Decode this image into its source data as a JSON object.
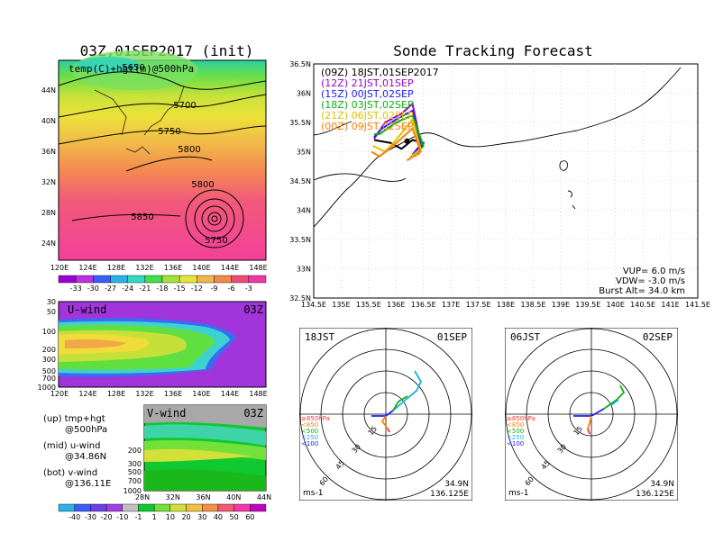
{
  "chart_data": [
    {
      "type": "heatmap",
      "title": "03Z,01SEP2017 (init)",
      "subtitle": "temp(C)+hgt(m)@500hPa",
      "x_ticks": [
        "120E",
        "124E",
        "128E",
        "132E",
        "136E",
        "140E",
        "144E",
        "148E"
      ],
      "y_ticks": [
        "44N",
        "40N",
        "36N",
        "32N",
        "28N",
        "24N"
      ],
      "contour_labels": [
        "5650",
        "5700",
        "5750",
        "5800",
        "5800",
        "5850",
        "5750"
      ],
      "colorbar": [
        "-33",
        "-30",
        "-27",
        "-24",
        "-21",
        "-18",
        "-15",
        "-12",
        "-9",
        "-6",
        "-3"
      ],
      "colors": [
        "#9b00d0",
        "#c030e0",
        "#3a5cff",
        "#2bb2e8",
        "#34d8c0",
        "#3fe04a",
        "#a6e03a",
        "#e6e63a",
        "#f0b848",
        "#f08a4a",
        "#f04a78",
        "#f238a8"
      ]
    },
    {
      "type": "heatmap",
      "title": "U-wind",
      "time_label": "03Z",
      "x_ticks": [
        "120E",
        "124E",
        "128E",
        "132E",
        "136E",
        "140E",
        "144E",
        "148E"
      ],
      "y_ticks": [
        "30",
        "50",
        "100",
        "200",
        "300",
        "500",
        "700",
        "1000"
      ]
    },
    {
      "type": "heatmap",
      "title": "V-wind",
      "time_label": "03Z",
      "x_ticks": [
        "28N",
        "32N",
        "36N",
        "40N",
        "44N"
      ],
      "y_ticks": [
        "200",
        "300",
        "500",
        "700",
        "1000"
      ],
      "colorbar": [
        "-40",
        "-30",
        "-20",
        "-10",
        "-1",
        "1",
        "10",
        "20",
        "30",
        "40",
        "50",
        "60"
      ]
    },
    {
      "type": "line",
      "title": "Sonde Tracking Forecast",
      "x_ticks": [
        "134.5E",
        "135E",
        "135.5E",
        "136E",
        "136.5E",
        "137E",
        "137.5E",
        "138E",
        "138.5E",
        "139E",
        "139.5E",
        "140E",
        "140.5E",
        "141E",
        "141.5E"
      ],
      "y_ticks": [
        "36.5N",
        "36N",
        "35.5N",
        "35N",
        "34.5N",
        "34N",
        "33.5N",
        "33N",
        "32.5N"
      ],
      "xlim": [
        134.5,
        141.5
      ],
      "ylim": [
        32.5,
        36.5
      ],
      "legend": [
        {
          "label": "(09Z)  18JST,01SEP2017",
          "color": "#000000"
        },
        {
          "label": "(12Z)  21JST,01SEP",
          "color": "#a000c8"
        },
        {
          "label": "(15Z)  00JST,02SEP",
          "color": "#1c1cff"
        },
        {
          "label": "(18Z)  03JST,02SEP",
          "color": "#10b010"
        },
        {
          "label": "(21Z)  06JST,02SEP",
          "color": "#e0c000"
        },
        {
          "label": "(00Z)  09JST,02SEP",
          "color": "#ff8000"
        }
      ],
      "series": [
        {
          "name": "(09Z)  18JST,01SEP2017",
          "x": [
            135.6,
            135.9,
            136.1,
            136.3,
            136.5,
            136.4
          ],
          "y": [
            35.2,
            35.15,
            35.05,
            35.2,
            35.15,
            34.95
          ]
        },
        {
          "name": "(12Z)  21JST,01SEP",
          "x": [
            135.6,
            135.8,
            136.1,
            136.3,
            136.45,
            136.35
          ],
          "y": [
            35.22,
            35.5,
            35.65,
            35.82,
            35.15,
            34.92
          ]
        },
        {
          "name": "(15Z)  00JST,02SEP",
          "x": [
            135.6,
            135.75,
            136.0,
            136.3,
            136.45,
            136.3
          ],
          "y": [
            35.25,
            35.4,
            35.55,
            35.7,
            35.12,
            34.95
          ]
        },
        {
          "name": "(18Z)  03JST,02SEP",
          "x": [
            135.6,
            135.7,
            136.0,
            136.3,
            136.5,
            136.35
          ],
          "y": [
            35.3,
            35.3,
            35.5,
            35.62,
            35.1,
            34.95
          ]
        },
        {
          "name": "(21Z)  06JST,02SEP",
          "x": [
            135.58,
            135.8,
            136.0,
            136.3,
            136.45,
            136.25
          ],
          "y": [
            35.1,
            35.0,
            35.2,
            35.55,
            35.05,
            34.9
          ]
        },
        {
          "name": "(00Z)  09JST,02SEP",
          "x": [
            135.55,
            135.7,
            135.95,
            136.3,
            136.45,
            136.2
          ],
          "y": [
            35.0,
            34.92,
            35.1,
            35.4,
            35.0,
            34.85
          ]
        }
      ],
      "info": {
        "vup": "VUP=  6.0 m/s",
        "vdw": "VDW= -3.0 m/s",
        "burst": "Burst Alt= 34.0 km"
      }
    },
    {
      "type": "line",
      "title_left": "18JST",
      "title_right": "01SEP",
      "ring_labels": [
        "15",
        "30",
        "45",
        "60"
      ],
      "pressure_labels": [
        {
          "text": "≥850hPa",
          "color": "#ff3030"
        },
        {
          "text": "<850",
          "color": "#ff8000"
        },
        {
          "text": "<500",
          "color": "#10b010"
        },
        {
          "text": "<250",
          "color": "#18b0e0"
        },
        {
          "text": "<100",
          "color": "#1c1cff"
        }
      ],
      "unit": "ms-1",
      "lat": "34.9N",
      "lon": "136.125E"
    },
    {
      "type": "line",
      "title_left": "06JST",
      "title_right": "02SEP",
      "ring_labels": [
        "15",
        "30",
        "45",
        "60"
      ],
      "pressure_labels": [
        {
          "text": "≥850hPa",
          "color": "#ff3030"
        },
        {
          "text": "<850",
          "color": "#ff8000"
        },
        {
          "text": "<500",
          "color": "#10b010"
        },
        {
          "text": "<250",
          "color": "#18b0e0"
        },
        {
          "text": "<100",
          "color": "#1c1cff"
        }
      ],
      "unit": "ms-1",
      "lat": "34.9N",
      "lon": "136.125E"
    }
  ],
  "notes": {
    "up": "(up) tmp+hgt",
    "up2": "@500hPa",
    "mid": "(mid) u-wind",
    "mid2": "@34.86N",
    "bot": "(bot) v-wind",
    "bot2": "@136.11E"
  }
}
